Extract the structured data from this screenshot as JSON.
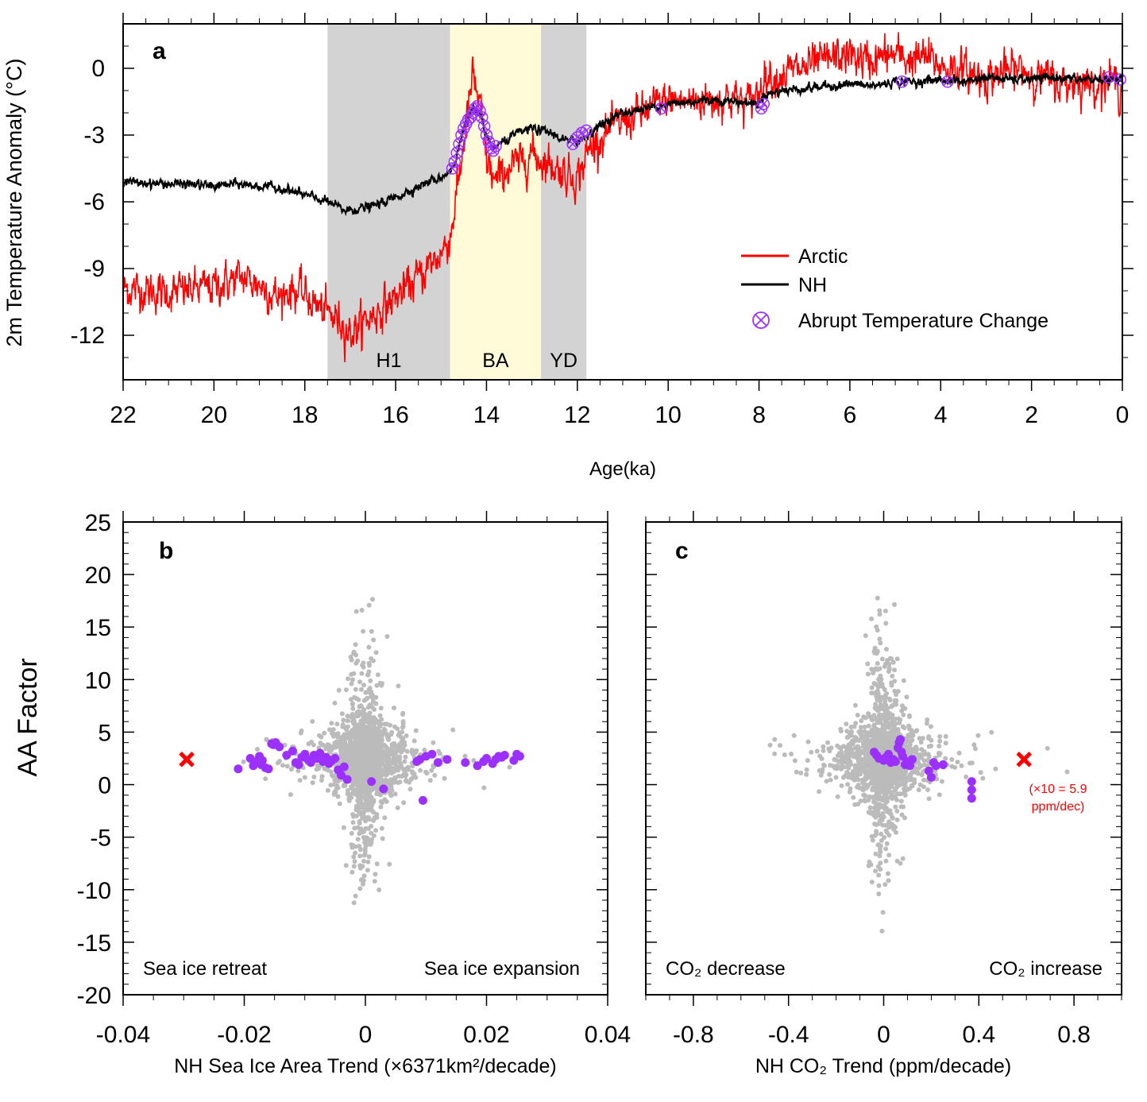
{
  "chart_data": [
    {
      "id": "a",
      "type": "line",
      "panel_label": "a",
      "xlabel": "Age(ka)",
      "ylabel": "2m Temperature Anomaly (°C)",
      "xlim": [
        22,
        0
      ],
      "ylim": [
        -14,
        2
      ],
      "x_ticks": [
        22,
        20,
        18,
        16,
        14,
        12,
        10,
        8,
        6,
        4,
        2,
        0
      ],
      "y_ticks": [
        0,
        -3,
        -6,
        -9,
        -12
      ],
      "y_tick_labels": [
        "0",
        "-3",
        "-6",
        "-9",
        "-12"
      ],
      "colors": {
        "arctic": "#ff0000",
        "nh": "#000000",
        "abrupt": "#9b30ff",
        "gray_band": "#d3d3d3",
        "yellow_band": "#fffbd9"
      },
      "shaded_periods": [
        {
          "name": "H1",
          "start": 17.5,
          "end": 14.8,
          "color": "#d3d3d3"
        },
        {
          "name": "BA",
          "start": 14.8,
          "end": 12.8,
          "color": "#fffbd9"
        },
        {
          "name": "YD",
          "start": 12.8,
          "end": 11.8,
          "color": "#d3d3d3"
        }
      ],
      "series": [
        {
          "name": "Arctic",
          "color": "#ff0000",
          "x": [
            22,
            21,
            20,
            19.4,
            19,
            18.6,
            18.3,
            18,
            17.6,
            17.2,
            17.0,
            16.5,
            16,
            15.5,
            15,
            14.8,
            14.6,
            14.45,
            14.3,
            14.15,
            14.0,
            13.8,
            13.6,
            13.3,
            13.0,
            12.8,
            12.5,
            12.3,
            12.0,
            11.7,
            11.3,
            11.0,
            10.7,
            10.3,
            10.0,
            9.6,
            9.3,
            9.0,
            8.6,
            8.3,
            8.0,
            7.9,
            7.6,
            7.3,
            7.0,
            6.6,
            6.3,
            6.0,
            5.6,
            5.3,
            5.0,
            4.7,
            4.3,
            4.0,
            3.6,
            3.3,
            3.0,
            2.6,
            2.2,
            2.0,
            1.6,
            1.3,
            1.0,
            0.7,
            0.4,
            0.2,
            0
          ],
          "y": [
            -9.9,
            -10.1,
            -9.8,
            -9.4,
            -9.7,
            -10.3,
            -9.9,
            -10.2,
            -10.9,
            -11.4,
            -11.9,
            -11.1,
            -10.3,
            -9.4,
            -8.3,
            -7.6,
            -4.9,
            -2.6,
            -0.3,
            -1.7,
            -4.1,
            -5.2,
            -4.6,
            -4.3,
            -3.8,
            -4.1,
            -4.4,
            -4.7,
            -4.9,
            -3.5,
            -2.8,
            -2.4,
            -2.1,
            -1.7,
            -1.4,
            -1.5,
            -1.4,
            -1.4,
            -1.3,
            -1.6,
            -1.1,
            -0.3,
            -0.4,
            -0.1,
            0.0,
            0.3,
            0.5,
            0.6,
            0.3,
            0.5,
            0.6,
            0.4,
            0.5,
            0.1,
            0.0,
            -0.3,
            -0.4,
            -0.2,
            0.0,
            -0.3,
            -0.5,
            -0.7,
            -0.6,
            -0.7,
            -0.5,
            -0.6,
            -1.0
          ]
        },
        {
          "name": "NH",
          "color": "#000000",
          "x": [
            22,
            21,
            20.5,
            20,
            19.5,
            19,
            18.5,
            18,
            17.5,
            17.1,
            16.5,
            16,
            15.5,
            15,
            14.7,
            14.5,
            14.3,
            14.1,
            13.9,
            13.6,
            13.3,
            13.0,
            12.6,
            12.2,
            11.9,
            11.6,
            11.3,
            11,
            10.5,
            10,
            9.5,
            9,
            8.5,
            8.0,
            7.9,
            7.5,
            7,
            6.5,
            6,
            5.5,
            5,
            4.5,
            4,
            3.5,
            3,
            2.5,
            2,
            1.5,
            1,
            0.5,
            0
          ],
          "y": [
            -5.1,
            -5.2,
            -5.2,
            -5.3,
            -5.2,
            -5.3,
            -5.4,
            -5.7,
            -6.0,
            -6.4,
            -6.2,
            -5.8,
            -5.3,
            -4.9,
            -4.4,
            -2.6,
            -1.8,
            -2.4,
            -3.6,
            -3.3,
            -2.9,
            -2.7,
            -2.9,
            -3.3,
            -3.2,
            -2.7,
            -2.3,
            -2.0,
            -1.8,
            -1.6,
            -1.5,
            -1.4,
            -1.5,
            -1.6,
            -1.2,
            -1.0,
            -0.9,
            -0.8,
            -0.7,
            -0.8,
            -0.6,
            -0.6,
            -0.5,
            -0.6,
            -0.4,
            -0.5,
            -0.5,
            -0.4,
            -0.5,
            -0.5,
            -0.6
          ]
        }
      ],
      "abrupt_points": {
        "name": "Abrupt Temperature Change",
        "x": [
          14.75,
          14.7,
          14.65,
          14.6,
          14.55,
          14.5,
          14.45,
          14.4,
          14.35,
          14.3,
          14.25,
          14.2,
          14.15,
          14.1,
          14.05,
          14.0,
          13.95,
          13.9,
          13.85,
          13.8,
          12.1,
          12.0,
          11.9,
          11.8,
          10.15,
          7.95,
          7.9,
          4.85,
          3.85,
          0.3,
          0.05
        ],
        "y": [
          -4.5,
          -4.2,
          -3.8,
          -3.4,
          -3.0,
          -2.7,
          -2.5,
          -2.3,
          -2.2,
          -2.0,
          -1.8,
          -1.7,
          -1.9,
          -2.2,
          -2.6,
          -3.0,
          -3.3,
          -3.6,
          -3.7,
          -3.5,
          -3.4,
          -3.1,
          -2.9,
          -2.8,
          -1.8,
          -1.8,
          -1.6,
          -0.6,
          -0.6,
          -0.4,
          -0.5
        ]
      },
      "legend": [
        {
          "label": "Arctic",
          "color": "#ff0000",
          "marker": "line"
        },
        {
          "label": "NH",
          "color": "#000000",
          "marker": "line"
        },
        {
          "label": "Abrupt Temperature Change",
          "color": "#9b30ff",
          "marker": "circle-x"
        }
      ],
      "legend_position": "bottom-right"
    },
    {
      "id": "b",
      "type": "scatter",
      "panel_label": "b",
      "xlabel": "NH Sea Ice Area Trend (×6371km²/decade)",
      "ylabel": "AA Factor",
      "xlim": [
        -0.04,
        0.04
      ],
      "ylim": [
        -20,
        25
      ],
      "x_ticks": [
        -0.04,
        -0.02,
        0,
        0.02,
        0.04
      ],
      "x_tick_labels": [
        "-0.04",
        "-0.02",
        "0",
        "0.02",
        "0.04"
      ],
      "y_ticks": [
        25,
        20,
        15,
        10,
        5,
        0,
        -5,
        -10,
        -15,
        -20
      ],
      "y_tick_labels": [
        "25",
        "20",
        "15",
        "10",
        "5",
        "0",
        "-5",
        "-10",
        "-15",
        "-20"
      ],
      "annotations": [
        "Sea ice retreat",
        "Sea ice expansion"
      ],
      "gray_cloud": {
        "center_x": 0.0,
        "center_y": 2.4,
        "count_approx": 1500,
        "color": "#bbbbbb"
      },
      "purple_points": {
        "color": "#9b30ff",
        "x": [
          -0.021,
          -0.019,
          -0.0185,
          -0.018,
          -0.0175,
          -0.0172,
          -0.017,
          -0.0165,
          -0.016,
          -0.0155,
          -0.0152,
          -0.0148,
          -0.0142,
          -0.013,
          -0.012,
          -0.0115,
          -0.011,
          -0.0105,
          -0.01,
          -0.0095,
          -0.009,
          -0.0085,
          -0.008,
          -0.0075,
          -0.007,
          -0.0065,
          -0.006,
          -0.0055,
          -0.005,
          -0.0045,
          -0.004,
          -0.0035,
          -0.003,
          0.001,
          0.003,
          0.0085,
          0.009,
          0.0095,
          0.01,
          0.011,
          0.012,
          0.0135,
          0.0165,
          0.0185,
          0.0195,
          0.02,
          0.021,
          0.0215,
          0.022,
          0.0225,
          0.023,
          0.0245,
          0.025,
          0.0255
        ],
        "y": [
          1.5,
          2.5,
          1.8,
          2.2,
          2.7,
          1.9,
          2.3,
          1.6,
          1.5,
          3.9,
          3.8,
          4.0,
          3.6,
          2.8,
          3.2,
          2.1,
          1.9,
          2.6,
          2.9,
          2.4,
          2.1,
          2.8,
          2.5,
          3.0,
          2.2,
          2.6,
          2.0,
          2.3,
          2.5,
          1.4,
          0.9,
          1.7,
          0.5,
          0.3,
          -0.4,
          2.2,
          2.4,
          -1.5,
          2.7,
          2.9,
          2.1,
          2.4,
          2.1,
          1.8,
          2.2,
          2.5,
          2.0,
          2.4,
          2.7,
          2.6,
          2.8,
          2.3,
          2.9,
          2.7
        ]
      },
      "observed_marker": {
        "x": -0.0295,
        "y": 2.4,
        "color": "#ff0000",
        "marker": "x"
      }
    },
    {
      "id": "c",
      "type": "scatter",
      "panel_label": "c",
      "xlabel": "NH CO₂ Trend (ppm/decade)",
      "ylabel": "",
      "xlim": [
        -1.0,
        1.0
      ],
      "ylim": [
        -20,
        25
      ],
      "x_ticks": [
        -0.8,
        -0.4,
        0,
        0.4,
        0.8
      ],
      "x_tick_labels": [
        "-0.8",
        "-0.4",
        "0",
        "0.4",
        "0.8"
      ],
      "annotations": [
        "CO₂ decrease",
        "CO₂ increase"
      ],
      "observed_note": "(×10 = 5.9\nppm/dec)",
      "gray_cloud": {
        "center_x": 0.0,
        "center_y": 2.4,
        "count_approx": 1500,
        "color": "#bbbbbb"
      },
      "purple_points": {
        "color": "#9b30ff",
        "x": [
          -0.04,
          -0.03,
          -0.02,
          0.0,
          0.01,
          0.02,
          0.03,
          0.04,
          0.05,
          0.06,
          0.065,
          0.07,
          0.075,
          0.08,
          0.09,
          0.1,
          0.11,
          0.12,
          0.19,
          0.2,
          0.21,
          0.22,
          0.25,
          0.37,
          0.37,
          0.37
        ],
        "y": [
          3.1,
          2.8,
          2.5,
          2.3,
          2.6,
          2.9,
          2.1,
          2.4,
          2.2,
          3.5,
          4.0,
          4.3,
          3.1,
          2.7,
          1.9,
          2.2,
          1.8,
          2.4,
          1.3,
          0.7,
          2.1,
          1.8,
          1.9,
          0.3,
          -0.5,
          -1.3
        ]
      },
      "observed_marker": {
        "x": 0.59,
        "y": 2.4,
        "color": "#ff0000",
        "marker": "x"
      }
    }
  ]
}
